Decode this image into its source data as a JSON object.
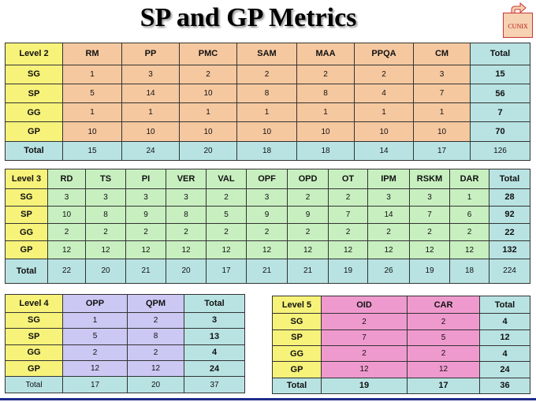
{
  "title": "SP and GP Metrics",
  "logo_text": "CUNIX",
  "tables": {
    "level2": {
      "label": "Level 2",
      "columns": [
        "RM",
        "PP",
        "PMC",
        "SAM",
        "MAA",
        "PPQA",
        "CM",
        "Total"
      ],
      "rows": [
        {
          "label": "SG",
          "values": [
            "1",
            "3",
            "2",
            "2",
            "2",
            "2",
            "3"
          ],
          "total": "15"
        },
        {
          "label": "SP",
          "values": [
            "5",
            "14",
            "10",
            "8",
            "8",
            "4",
            "7"
          ],
          "total": "56"
        },
        {
          "label": "GG",
          "values": [
            "1",
            "1",
            "1",
            "1",
            "1",
            "1",
            "1"
          ],
          "total": "7"
        },
        {
          "label": "GP",
          "values": [
            "10",
            "10",
            "10",
            "10",
            "10",
            "10",
            "10"
          ],
          "total": "70"
        }
      ],
      "total_row": {
        "label": "Total",
        "values": [
          "15",
          "24",
          "20",
          "18",
          "18",
          "14",
          "17"
        ],
        "total": "126"
      }
    },
    "level3": {
      "label": "Level 3",
      "columns": [
        "RD",
        "TS",
        "PI",
        "VER",
        "VAL",
        "OPF",
        "OPD",
        "OT",
        "IPM",
        "RSKM",
        "DAR",
        "Total"
      ],
      "rows": [
        {
          "label": "SG",
          "values": [
            "3",
            "3",
            "3",
            "3",
            "2",
            "3",
            "2",
            "2",
            "3",
            "3",
            "1"
          ],
          "total": "28"
        },
        {
          "label": "SP",
          "values": [
            "10",
            "8",
            "9",
            "8",
            "5",
            "9",
            "9",
            "7",
            "14",
            "7",
            "6"
          ],
          "total": "92"
        },
        {
          "label": "GG",
          "values": [
            "2",
            "2",
            "2",
            "2",
            "2",
            "2",
            "2",
            "2",
            "2",
            "2",
            "2"
          ],
          "total": "22"
        },
        {
          "label": "GP",
          "values": [
            "12",
            "12",
            "12",
            "12",
            "12",
            "12",
            "12",
            "12",
            "12",
            "12",
            "12"
          ],
          "total": "132"
        }
      ],
      "total_row": {
        "label": "Total",
        "values": [
          "22",
          "20",
          "21",
          "20",
          "17",
          "21",
          "21",
          "19",
          "26",
          "19",
          "18"
        ],
        "total": "224"
      }
    },
    "level4": {
      "label": "Level 4",
      "columns": [
        "OPP",
        "QPM",
        "Total"
      ],
      "rows": [
        {
          "label": "SG",
          "values": [
            "1",
            "2"
          ],
          "total": "3"
        },
        {
          "label": "SP",
          "values": [
            "5",
            "8"
          ],
          "total": "13"
        },
        {
          "label": "GG",
          "values": [
            "2",
            "2"
          ],
          "total": "4"
        },
        {
          "label": "GP",
          "values": [
            "12",
            "12"
          ],
          "total": "24"
        }
      ],
      "total_row": {
        "label": "Total",
        "values": [
          "17",
          "20"
        ],
        "total": "37"
      }
    },
    "level5": {
      "label": "Level 5",
      "columns": [
        "OID",
        "CAR",
        "Total"
      ],
      "rows": [
        {
          "label": "SG",
          "values": [
            "2",
            "2"
          ],
          "total": "4"
        },
        {
          "label": "SP",
          "values": [
            "7",
            "5"
          ],
          "total": "12"
        },
        {
          "label": "GG",
          "values": [
            "2",
            "2"
          ],
          "total": "4"
        },
        {
          "label": "GP",
          "values": [
            "12",
            "12"
          ],
          "total": "24"
        }
      ],
      "total_row": {
        "label": "Total",
        "values": [
          "19",
          "17"
        ],
        "total": "36"
      }
    }
  }
}
